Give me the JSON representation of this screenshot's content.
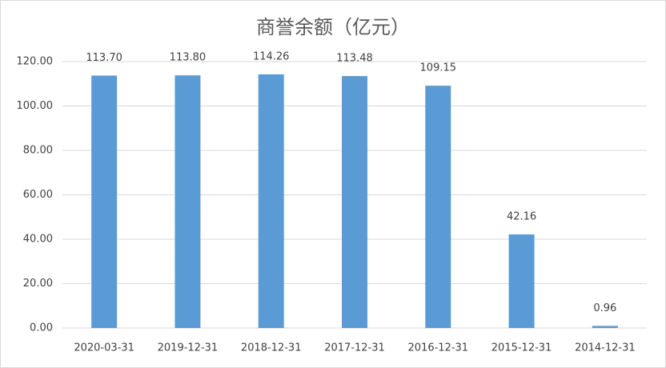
{
  "chart_data": {
    "type": "bar",
    "title": "商誉余额（亿元）",
    "categories": [
      "2020-03-31",
      "2019-12-31",
      "2018-12-31",
      "2017-12-31",
      "2016-12-31",
      "2015-12-31",
      "2014-12-31"
    ],
    "values": [
      113.7,
      113.8,
      114.26,
      113.48,
      109.15,
      42.16,
      0.96
    ],
    "value_labels": [
      "113.70",
      "113.80",
      "114.26",
      "113.48",
      "109.15",
      "42.16",
      "0.96"
    ],
    "color": "#5b9bd5",
    "ylim": [
      0,
      120
    ],
    "yticks": [
      {
        "value": 0,
        "label": "0.00"
      },
      {
        "value": 20,
        "label": "20.00"
      },
      {
        "value": 40,
        "label": "40.00"
      },
      {
        "value": 60,
        "label": "60.00"
      },
      {
        "value": 80,
        "label": "80.00"
      },
      {
        "value": 100,
        "label": "100.00"
      },
      {
        "value": 120,
        "label": "120.00"
      }
    ],
    "grid": true
  }
}
